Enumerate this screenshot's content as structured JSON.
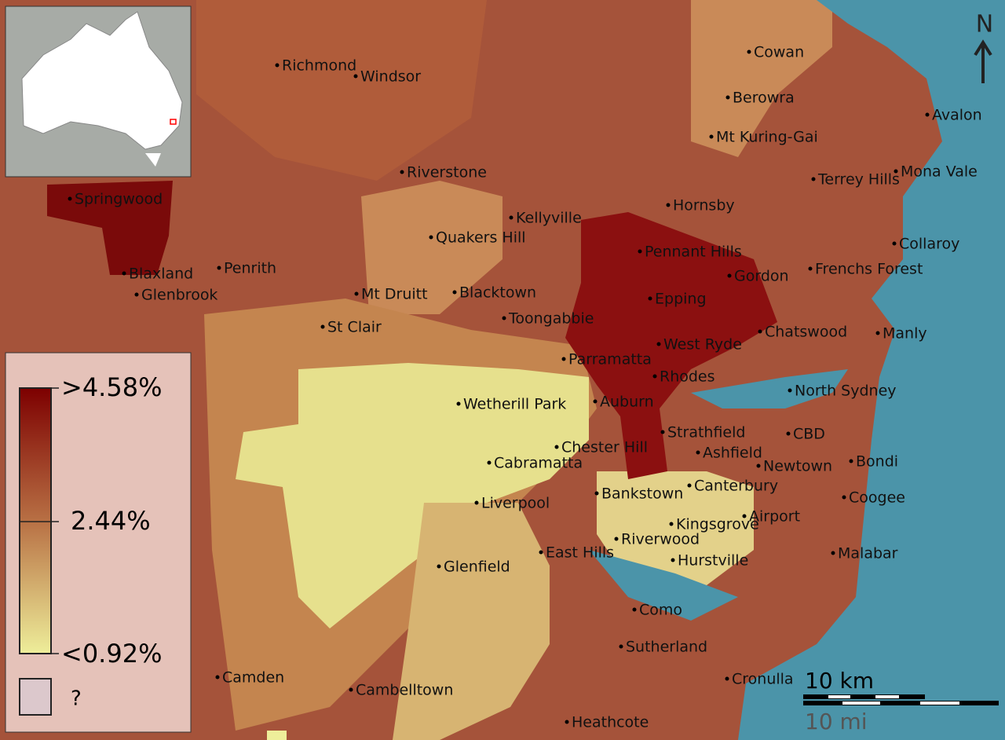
{
  "places": [
    "Richmond",
    "Windsor",
    "Cowan",
    "Berowra",
    "Avalon",
    "Mt Kuring-Gai",
    "Riverstone",
    "Terrey Hills",
    "Mona Vale",
    "Springwood",
    "Hornsby",
    "Kellyville",
    "Quakers Hill",
    "Collaroy",
    "Pennant Hills",
    "Penrith",
    "Blaxland",
    "Gordon",
    "Frenchs Forest",
    "Glenbrook",
    "Mt Druitt",
    "Blacktown",
    "Epping",
    "Toongabbie",
    "St Clair",
    "Chatswood",
    "Manly",
    "West Ryde",
    "Parramatta",
    "Rhodes",
    "North Sydney",
    "Wetherill Park",
    "Auburn",
    "Strathfield",
    "CBD",
    "Chester Hill",
    "Ashfield",
    "Cabramatta",
    "Newtown",
    "Bondi",
    "Canterbury",
    "Bankstown",
    "Liverpool",
    "Coogee",
    "Kingsgrove",
    "Airport",
    "Riverwood",
    "East Hills",
    "Malabar",
    "Hurstville",
    "Glenfield",
    "Como",
    "Sutherland",
    "Camden",
    "Cronulla",
    "Cambelltown",
    "Heathcote"
  ],
  "legend": {
    "high": ">4.58%",
    "mid": "2.44%",
    "low": "<0.92%",
    "unknown": "?"
  },
  "scale": {
    "km": "10 km",
    "mi": "10 mi"
  },
  "north": "N"
}
